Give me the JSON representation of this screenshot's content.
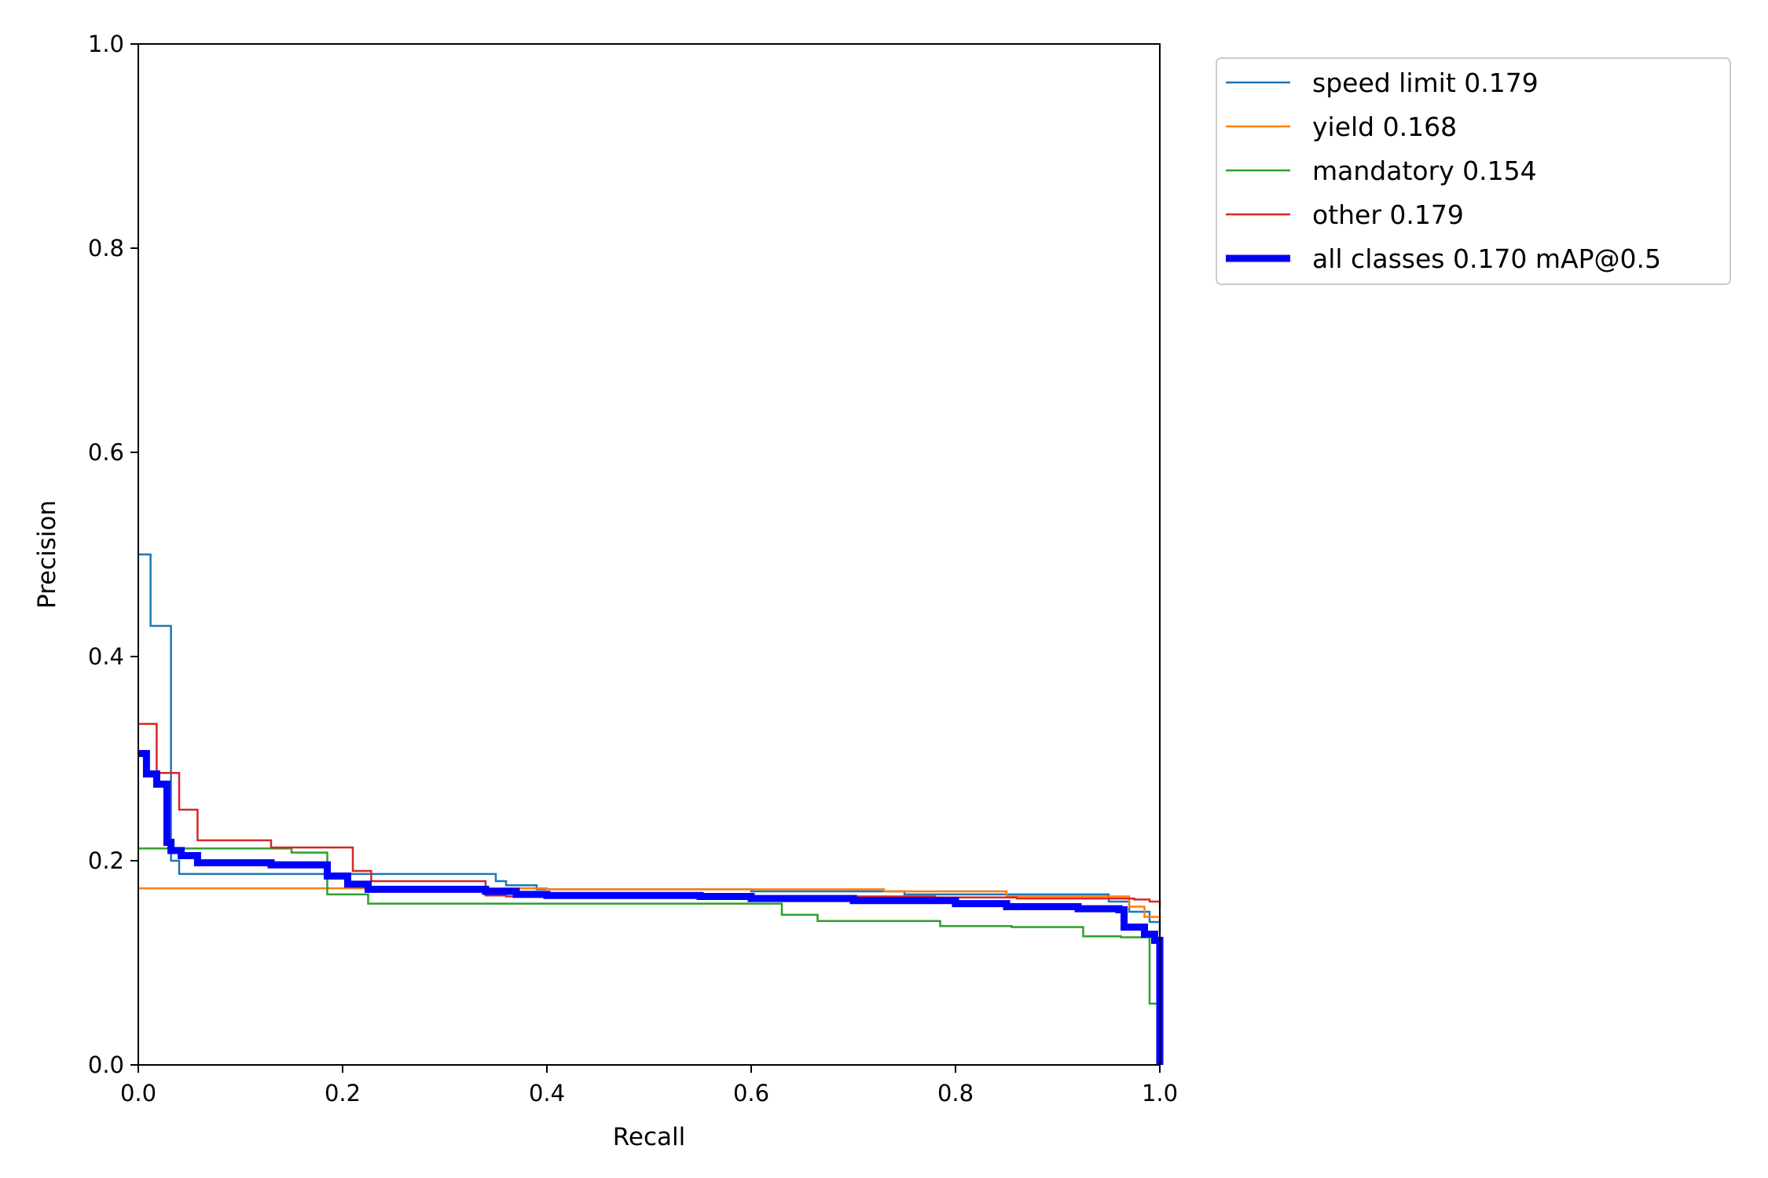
{
  "chart_data": {
    "type": "line",
    "title": "",
    "xlabel": "Recall",
    "ylabel": "Precision",
    "xlim": [
      0,
      1
    ],
    "ylim": [
      0,
      1
    ],
    "xticks": [
      "0.0",
      "0.2",
      "0.4",
      "0.6",
      "0.8",
      "1.0"
    ],
    "yticks": [
      "0.0",
      "0.2",
      "0.4",
      "0.6",
      "0.8",
      "1.0"
    ],
    "grid": false,
    "legend_position": "outside upper right",
    "series": [
      {
        "name": "speed limit 0.179",
        "color": "#1f77b4",
        "step": true,
        "x": [
          0,
          0.01,
          0.012,
          0.03,
          0.032,
          0.04,
          0.2,
          0.34,
          0.35,
          0.36,
          0.39,
          0.6,
          0.75,
          0.95,
          0.97,
          0.99,
          1.0
        ],
        "y": [
          0.5,
          0.5,
          0.43,
          0.43,
          0.2,
          0.187,
          0.187,
          0.187,
          0.18,
          0.176,
          0.172,
          0.17,
          0.167,
          0.16,
          0.15,
          0.14,
          0.13
        ]
      },
      {
        "name": "yield 0.168",
        "color": "#ff7f0e",
        "step": true,
        "x": [
          0,
          0.4,
          0.73,
          0.85,
          0.97,
          0.985,
          1.0
        ],
        "y": [
          0.173,
          0.172,
          0.17,
          0.165,
          0.155,
          0.145,
          0.14
        ]
      },
      {
        "name": "mandatory 0.154",
        "color": "#2ca02c",
        "step": true,
        "x": [
          0,
          0.15,
          0.185,
          0.225,
          0.555,
          0.63,
          0.665,
          0.785,
          0.855,
          0.925,
          0.962,
          0.99,
          1.0
        ],
        "y": [
          0.212,
          0.208,
          0.167,
          0.158,
          0.158,
          0.147,
          0.141,
          0.136,
          0.135,
          0.126,
          0.125,
          0.06,
          0.06
        ]
      },
      {
        "name": "other 0.179",
        "color": "#d62728",
        "step": true,
        "x": [
          0,
          0.018,
          0.04,
          0.058,
          0.13,
          0.21,
          0.228,
          0.34,
          0.36,
          0.52,
          0.78,
          0.86,
          0.96,
          0.975,
          0.99,
          1.0
        ],
        "y": [
          0.334,
          0.286,
          0.25,
          0.22,
          0.213,
          0.19,
          0.18,
          0.166,
          0.165,
          0.165,
          0.164,
          0.163,
          0.163,
          0.162,
          0.16,
          0.155
        ]
      },
      {
        "name": "all classes 0.170 mAP@0.5",
        "color": "#0000ff",
        "step": true,
        "thick": true,
        "x": [
          0,
          0.008,
          0.018,
          0.028,
          0.032,
          0.042,
          0.058,
          0.1,
          0.13,
          0.185,
          0.205,
          0.225,
          0.34,
          0.37,
          0.4,
          0.55,
          0.6,
          0.7,
          0.8,
          0.85,
          0.92,
          0.96,
          0.965,
          0.985,
          0.995,
          1.0
        ],
        "y": [
          0.305,
          0.285,
          0.275,
          0.218,
          0.21,
          0.205,
          0.198,
          0.198,
          0.196,
          0.185,
          0.177,
          0.172,
          0.17,
          0.167,
          0.166,
          0.165,
          0.163,
          0.161,
          0.158,
          0.155,
          0.153,
          0.152,
          0.135,
          0.128,
          0.122,
          0.0
        ]
      }
    ]
  }
}
